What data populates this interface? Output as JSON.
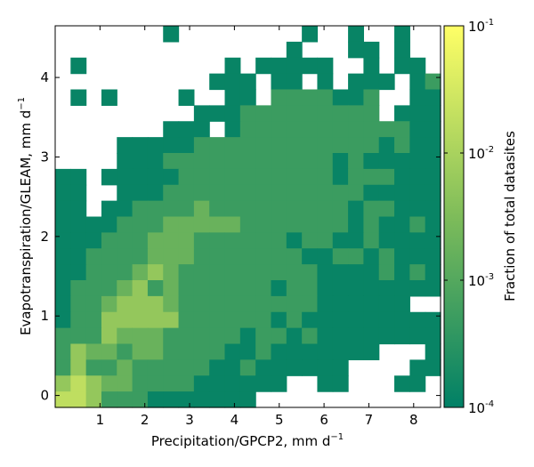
{
  "chart_data": {
    "type": "heatmap",
    "xlabel": "Precipitation/GPCP2,  mm d",
    "xlabel_sup": "−1",
    "ylabel": "Evapotranspiration/GLEAM,  mm d",
    "ylabel_sup": "−1",
    "xlim": [
      0,
      8.6
    ],
    "ylim": [
      -0.15,
      4.65
    ],
    "x_ticks": [
      1,
      2,
      3,
      4,
      5,
      6,
      7,
      8
    ],
    "y_ticks": [
      0,
      1,
      2,
      3,
      4
    ],
    "x_tick_labels": [
      "1",
      "2",
      "3",
      "4",
      "5",
      "6",
      "7",
      "8"
    ],
    "y_tick_labels": [
      "0",
      "1",
      "2",
      "3",
      "4"
    ],
    "bin_width_x": 0.344,
    "bin_width_y": 0.2,
    "n_cols": 25,
    "n_rows": 24,
    "value_scale": "log10 of fraction of total datasites",
    "colorbar": {
      "label": "Fraction of total datasites",
      "scale": "log",
      "range": [
        0.0001,
        0.1
      ],
      "tick_values": [
        0.1,
        0.01,
        0.001,
        0.0001
      ],
      "tick_base": [
        "10",
        "10",
        "10",
        "10"
      ],
      "tick_exponents": [
        "-1",
        "-2",
        "-3",
        "-4"
      ],
      "colors": [
        "#008066",
        "#7ebc5a",
        "#ffff66"
      ]
    },
    "grid_rows_top_to_bottom": [
      "       .        .  .  .  ",
      "               .   .. .  ",
      " .         . .....  . .. ",
      "          ... .. . ... .:",
      " . .    .  .. ::::..:  ..",
      "         ...::::::::: ...",
      "       ... .:::::::::::..",
      "    .....::::::::::::.:..",
      "    ...:::::::::::.:.....",
      ".. .....::::::::::.:::...",
      "..  ...:::::::::::::.....",
      ".. ..::::-:::::::::.::...",
      "....:::-----:::::::.:..:.",
      "...:::---::::::.::..:....",
      "..::::---:::::::..::.:...",
      "..:::-=-:::::::::....:.:.",
      ".:::-=:-::::::.::........",
      ".::-===-:::::::::......  ",
      ".::=====::::::.:.........",
      ":::=---:::::.::.:........",
      ":=--:--::::..:.......   .",
      ":=::-:::::..:......    ..",
      "=+=--::::......  ..   .. ",
      "++=:::.......            "
    ]
  }
}
